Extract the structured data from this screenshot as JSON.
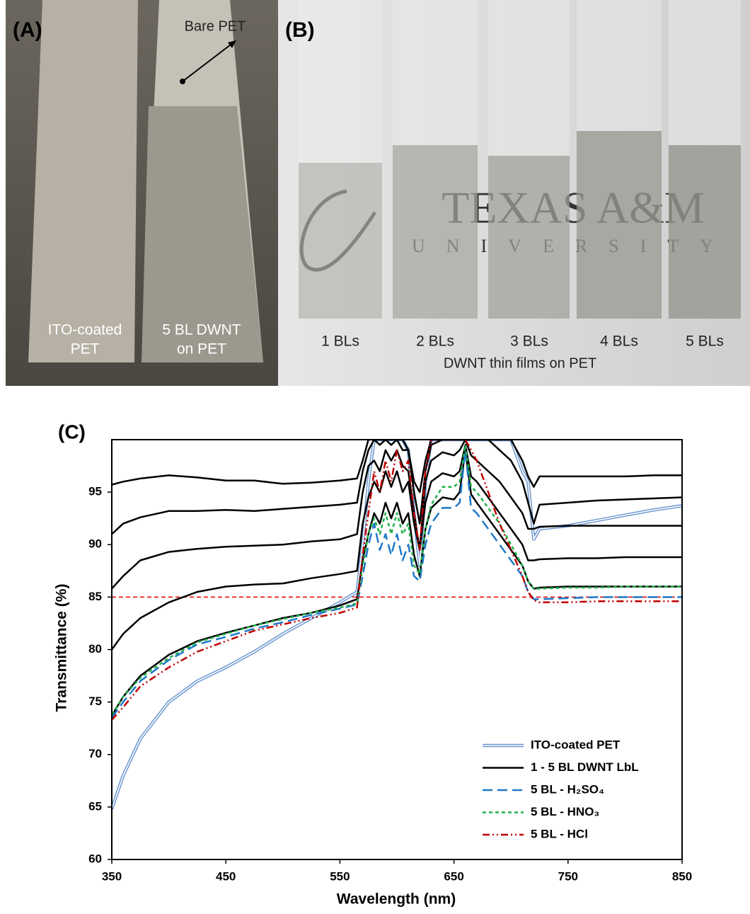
{
  "panels": {
    "a_label": "(A)",
    "b_label": "(B)",
    "bare_pet": "Bare PET",
    "ito_label": [
      "ITO-coated",
      "PET"
    ],
    "dwnt_label": [
      "5 BL DWNT",
      "on PET"
    ],
    "strip_labels": [
      "1 BLs",
      "2 BLs",
      "3 BLs",
      "4 BLs",
      "5 BLs"
    ],
    "caption": "DWNT thin films on PET",
    "logo": [
      "TEXAS A&M",
      "UNIVERSITY"
    ]
  },
  "chart_data": {
    "type": "line",
    "title": "(C)",
    "x_label": "Wavelength (nm)",
    "y_label": "Transmittance (%)",
    "x": [
      350,
      360,
      375,
      400,
      425,
      450,
      475,
      500,
      525,
      550,
      565,
      570,
      575,
      580,
      585,
      590,
      595,
      600,
      605,
      610,
      615,
      620,
      625,
      630,
      640,
      650,
      655,
      660,
      665,
      670,
      680,
      690,
      700,
      710,
      715,
      720,
      725,
      750,
      775,
      800,
      825,
      850
    ],
    "xlim": [
      350,
      850
    ],
    "xticks": [
      350,
      450,
      550,
      650,
      750,
      850
    ],
    "ylim": [
      60,
      100
    ],
    "yticks": [
      60,
      65,
      70,
      75,
      80,
      85,
      90,
      95
    ],
    "reference_line": {
      "value": 85,
      "color": "#e00000"
    },
    "series": [
      {
        "name": "ITO-coated PET",
        "color": "#6a95cf",
        "dash": "none",
        "double": true,
        "values": [
          64.8,
          68,
          71.5,
          75,
          77,
          78.3,
          79.8,
          81.5,
          83,
          84.5,
          85.5,
          90,
          96,
          100,
          100,
          100,
          100,
          100,
          100,
          99,
          93,
          88,
          96,
          100,
          100,
          100,
          100,
          100,
          100,
          100,
          100,
          100,
          100,
          97,
          96,
          90.5,
          91.5,
          91.8,
          92.3,
          92.8,
          93.3,
          93.7
        ]
      },
      {
        "name": "1 - 5 BL DWNT LbL",
        "color": "#000000",
        "dash": "none",
        "lines": [
          [
            95.7,
            96,
            96.3,
            96.6,
            96.4,
            96.1,
            96.1,
            95.8,
            95.9,
            96.1,
            96.3,
            98,
            100,
            100,
            100,
            100,
            100,
            100,
            100,
            99,
            96,
            95,
            98,
            100,
            100,
            100,
            100,
            100,
            100,
            100,
            100,
            100,
            100,
            98,
            96.5,
            95.5,
            96.5,
            96.5,
            96.5,
            96.5,
            96.6,
            96.6
          ],
          [
            91,
            92,
            92.6,
            93.2,
            93.2,
            93.3,
            93.2,
            93.4,
            93.6,
            93.8,
            94,
            97,
            99,
            100,
            99.5,
            100,
            99.5,
            100,
            99,
            99,
            95,
            92,
            97,
            99.5,
            100,
            100,
            100,
            100,
            100,
            100,
            100,
            99,
            98,
            96,
            94,
            92,
            93.8,
            94,
            94.2,
            94.3,
            94.4,
            94.5
          ],
          [
            85.8,
            87,
            88.5,
            89.3,
            89.6,
            89.8,
            89.9,
            90,
            90.3,
            90.5,
            91,
            95,
            97.5,
            98,
            97,
            99,
            98,
            99,
            97.5,
            97,
            93,
            89.5,
            96,
            98,
            98.8,
            98.5,
            99,
            100,
            98.5,
            98,
            97,
            96,
            94.5,
            93,
            91.5,
            91.5,
            91.7,
            91.8,
            91.8,
            91.8,
            91.8,
            91.8
          ],
          [
            80,
            81.5,
            83,
            84.5,
            85.5,
            86,
            86.2,
            86.3,
            86.8,
            87.2,
            87.5,
            92,
            94.5,
            96,
            95,
            97,
            95.5,
            97,
            95,
            96,
            92,
            89.5,
            94,
            96,
            96.8,
            96.5,
            97,
            99.5,
            96.5,
            96,
            94.5,
            93,
            91.5,
            90,
            88.5,
            88.5,
            88.6,
            88.7,
            88.7,
            88.8,
            88.8,
            88.8
          ],
          [
            73.7,
            75.5,
            77.5,
            79.5,
            80.8,
            81.6,
            82.3,
            83,
            83.5,
            84.2,
            84.8,
            88.5,
            91,
            93,
            92,
            94,
            92.5,
            94,
            92,
            93,
            89,
            87,
            91.5,
            93.5,
            94.5,
            94.3,
            95,
            99,
            94.8,
            94,
            92.5,
            91,
            89.5,
            88,
            86.5,
            85.8,
            85.9,
            86,
            86,
            86,
            86,
            86
          ]
        ]
      },
      {
        "name": "5 BL - H₂SO₄",
        "color": "#1f78c8",
        "dash": "14 7",
        "values": [
          73.5,
          75,
          77,
          79,
          80.5,
          81.2,
          82,
          82.6,
          83.3,
          83.9,
          84.3,
          87,
          90,
          92,
          89.5,
          91,
          89,
          91,
          88.5,
          90,
          87,
          86.5,
          90,
          92,
          93.5,
          93.5,
          94,
          99,
          93.5,
          93,
          91.5,
          90,
          88.5,
          87,
          85.5,
          84.8,
          84.8,
          84.9,
          85,
          85,
          85,
          85
        ]
      },
      {
        "name": "5 BL - HNO₃",
        "color": "#22b04a",
        "dash": "5 4",
        "values": [
          73.8,
          75.5,
          77.3,
          79.2,
          80.7,
          81.5,
          82.3,
          82.9,
          83.5,
          84,
          84.4,
          88,
          91,
          92.5,
          91,
          93,
          91,
          93,
          91,
          92,
          88,
          87.2,
          91.5,
          93.8,
          95.5,
          95.5,
          96,
          99.5,
          95.5,
          95,
          93.5,
          92,
          90,
          88,
          86.5,
          85.8,
          85.8,
          85.9,
          85.9,
          86,
          86,
          86
        ]
      },
      {
        "name": "5 BL - HCl",
        "color": "#c00000",
        "dash": "10 4 2 4 2 4",
        "values": [
          73.3,
          74.5,
          76.5,
          78.3,
          79.8,
          80.8,
          81.8,
          82.4,
          83,
          83.5,
          84,
          89,
          93,
          97,
          95,
          98,
          96,
          99,
          97,
          98,
          93,
          89.5,
          97,
          100,
          100,
          100,
          100,
          100,
          99,
          98,
          95,
          92,
          89.5,
          87,
          85.5,
          84.7,
          84.5,
          84.5,
          84.6,
          84.6,
          84.6,
          84.6
        ]
      }
    ]
  }
}
